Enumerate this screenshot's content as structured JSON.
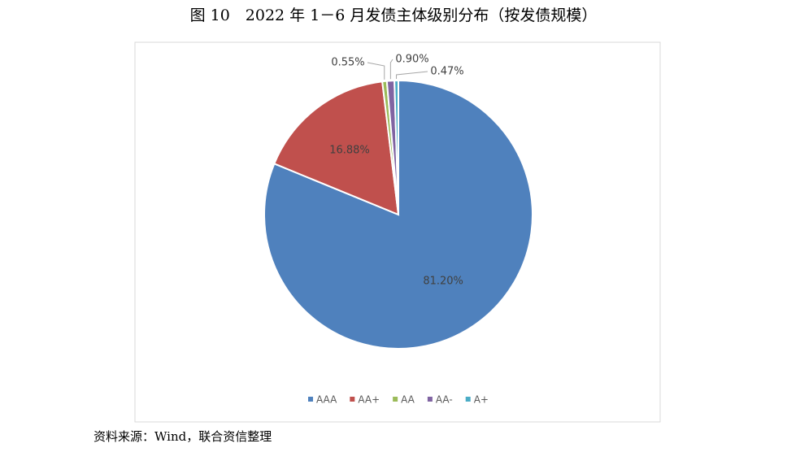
{
  "chart_data": {
    "type": "pie",
    "title": "图 10　2022 年 1－6 月发债主体级别分布（按发债规模）",
    "categories": [
      "AAA",
      "AA+",
      "AA",
      "AA-",
      "A+"
    ],
    "values": [
      81.2,
      16.88,
      0.55,
      0.9,
      0.47
    ],
    "value_labels": [
      "81.20%",
      "16.88%",
      "0.55%",
      "0.90%",
      "0.47%"
    ],
    "colors": [
      "#4f81bd",
      "#c0504d",
      "#9bbb59",
      "#8064a2",
      "#4bacc6"
    ],
    "legend": "bottom",
    "source": "资料来源：Wind，联合资信整理"
  }
}
